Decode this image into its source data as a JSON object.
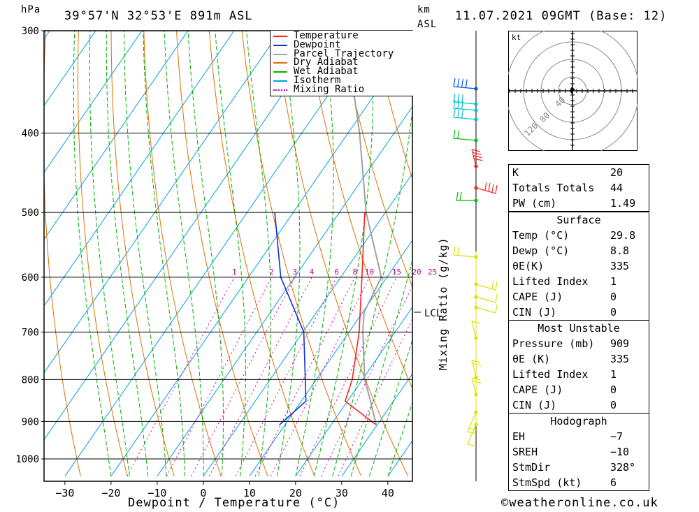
{
  "header": {
    "hpa_label": "hPa",
    "location": "39°57'N  32°53'E  891m  ASL",
    "km_label": "km",
    "asl_label": "ASL",
    "datetime": "11.07.2021  09GMT  (Base: 12)"
  },
  "footer": {
    "xlabel": "Dewpoint / Temperature (°C)",
    "copyright": "©weatheronline.co.uk",
    "mixing_ratio_label": "Mixing Ratio (g/kg)",
    "lcl_label": "LCL"
  },
  "colors": {
    "temperature": "#ff2020",
    "dewpoint": "#1030d0",
    "parcel": "#a0a0a0",
    "dry_adiabat": "#e07000",
    "wet_adiabat": "#00b000",
    "isotherm": "#00a0e0",
    "mixing_ratio": "#c000a0",
    "wind_red": "#ff2020",
    "wind_green": "#00c000",
    "wind_blue": "#0050ff",
    "wind_cyan": "#00c0d0",
    "wind_yellow": "#e0e000"
  },
  "chart_data": {
    "type": "line",
    "title": "",
    "xlabel": "Dewpoint / Temperature (°C)",
    "ylabel": "hPa",
    "x_ticks": [
      "−30",
      "−20",
      "−10",
      "0",
      "10",
      "20",
      "30",
      "40"
    ],
    "y_ticks": [
      "300",
      "400",
      "500",
      "600",
      "700",
      "800",
      "900",
      "1000"
    ],
    "y_scale": "log",
    "xlim": [
      -37,
      43
    ],
    "ylim": [
      1050,
      300
    ],
    "legend_position": "top-right",
    "legend": [
      "Temperature",
      "Dewpoint",
      "Parcel Trajectory",
      "Dry Adiabat",
      "Wet Adiabat",
      "Isotherm",
      "Mixing Ratio"
    ],
    "mixing_ratio_labels": [
      "1",
      "2",
      "3",
      "4",
      "6",
      "8",
      "10",
      "15",
      "20",
      "25"
    ],
    "series": [
      {
        "name": "Temperature",
        "points": [
          [
            909,
            29.8
          ],
          [
            850,
            19.5
          ],
          [
            800,
            17.8
          ],
          [
            700,
            12.2
          ],
          [
            600,
            4.6
          ],
          [
            500,
            -4.5
          ]
        ]
      },
      {
        "name": "Dewpoint",
        "points": [
          [
            909,
            8.8
          ],
          [
            850,
            11.0
          ],
          [
            700,
            0.2
          ],
          [
            600,
            -13.0
          ],
          [
            500,
            -24.0
          ]
        ]
      },
      {
        "name": "Parcel Trajectory",
        "points": [
          [
            909,
            29.8
          ],
          [
            850,
            25.0
          ],
          [
            800,
            20.5
          ],
          [
            700,
            13.0
          ],
          [
            662,
            10.3
          ],
          [
            600,
            8.8
          ],
          [
            500,
            -4.2
          ],
          [
            400,
            -17.5
          ],
          [
            300,
            -36.0
          ]
        ]
      }
    ],
    "lcl_pressure": 662
  },
  "indices": {
    "main": [
      {
        "k": "K",
        "v": "20"
      },
      {
        "k": "Totals Totals",
        "v": "44"
      },
      {
        "k": "PW (cm)",
        "v": "1.49"
      }
    ],
    "surface": {
      "title": "Surface",
      "rows": [
        {
          "k": "Temp (°C)",
          "v": "29.8"
        },
        {
          "k": "Dewp (°C)",
          "v": "8.8"
        },
        {
          "k": "θE(K)",
          "v": "335"
        },
        {
          "k": "Lifted Index",
          "v": "1"
        },
        {
          "k": "CAPE (J)",
          "v": "0"
        },
        {
          "k": "CIN (J)",
          "v": "0"
        }
      ]
    },
    "most_unstable": {
      "title": "Most Unstable",
      "rows": [
        {
          "k": "Pressure (mb)",
          "v": "909"
        },
        {
          "k": "θE (K)",
          "v": "335"
        },
        {
          "k": "Lifted Index",
          "v": "1"
        },
        {
          "k": "CAPE (J)",
          "v": "0"
        },
        {
          "k": "CIN (J)",
          "v": "0"
        }
      ]
    },
    "hodograph": {
      "title": "Hodograph",
      "rows": [
        {
          "k": "EH",
          "v": "−7"
        },
        {
          "k": "SREH",
          "v": "−10"
        },
        {
          "k": "StmDir",
          "v": "328°"
        },
        {
          "k": "StmSpd (kt)",
          "v": "6"
        }
      ]
    }
  },
  "hodograph_plot": {
    "unit": "kt",
    "ring_labels": [
      "40",
      "80",
      "120"
    ]
  }
}
